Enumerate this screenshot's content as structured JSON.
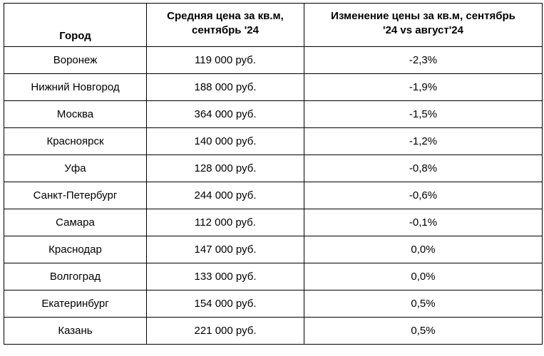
{
  "table": {
    "headers": {
      "city": "Город",
      "avg_price_line1": "Средняя цена за кв.м,",
      "avg_price_line2": "сентябрь '24",
      "change_line1": "Изменение цены за кв.м, сентябрь",
      "change_line2": "'24 vs август'24"
    },
    "rows": [
      {
        "city": "Воронеж",
        "price": "119 000 руб.",
        "change": "-2,3%"
      },
      {
        "city": "Нижний Новгород",
        "price": "188 000 руб.",
        "change": "-1,9%"
      },
      {
        "city": "Москва",
        "price": "364 000 руб.",
        "change": "-1,5%"
      },
      {
        "city": "Красноярск",
        "price": "140 000 руб.",
        "change": "-1,2%"
      },
      {
        "city": "Уфа",
        "price": "128 000 руб.",
        "change": "-0,8%"
      },
      {
        "city": "Санкт-Петербург",
        "price": "244 000 руб.",
        "change": "-0,6%"
      },
      {
        "city": "Самара",
        "price": "112 000 руб.",
        "change": "-0,1%"
      },
      {
        "city": "Краснодар",
        "price": "147 000 руб.",
        "change": "0,0%"
      },
      {
        "city": "Волгоград",
        "price": "133 000 руб.",
        "change": "0,0%"
      },
      {
        "city": "Екатеринбург",
        "price": "154 000 руб.",
        "change": "0,5%"
      },
      {
        "city": "Казань",
        "price": "221 000 руб.",
        "change": "0,5%"
      }
    ]
  }
}
